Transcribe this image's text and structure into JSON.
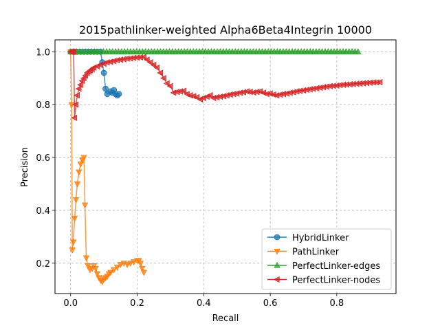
{
  "chart_data": {
    "type": "line",
    "title": "2015pathlinker-weighted Alpha6Beta4Integrin 10000",
    "xlabel": "Recall",
    "ylabel": "Precision",
    "xlim": [
      -0.047,
      0.978
    ],
    "ylim": [
      0.085,
      1.045
    ],
    "xticks": [
      {
        "v": 0.0,
        "label": "0.0"
      },
      {
        "v": 0.2,
        "label": "0.2"
      },
      {
        "v": 0.4,
        "label": "0.4"
      },
      {
        "v": 0.6,
        "label": "0.6"
      },
      {
        "v": 0.8,
        "label": "0.8"
      }
    ],
    "yticks": [
      {
        "v": 0.2,
        "label": "0.2"
      },
      {
        "v": 0.4,
        "label": "0.4"
      },
      {
        "v": 0.6,
        "label": "0.6"
      },
      {
        "v": 0.8,
        "label": "0.8"
      },
      {
        "v": 1.0,
        "label": "1.0"
      }
    ],
    "grid": true,
    "legend_position": "lower-right",
    "series": [
      {
        "name": "HybridLinker",
        "color": "#1f77b4",
        "marker": "circle",
        "points": [
          [
            0.0,
            1.0
          ],
          [
            0.01,
            1.0
          ],
          [
            0.02,
            1.0
          ],
          [
            0.03,
            1.0
          ],
          [
            0.04,
            1.0
          ],
          [
            0.05,
            1.0
          ],
          [
            0.06,
            1.0
          ],
          [
            0.07,
            1.0
          ],
          [
            0.08,
            1.0
          ],
          [
            0.09,
            1.0
          ],
          [
            0.095,
            0.96
          ],
          [
            0.1,
            0.92
          ],
          [
            0.105,
            0.86
          ],
          [
            0.11,
            0.84
          ],
          [
            0.12,
            0.85
          ],
          [
            0.125,
            0.845
          ],
          [
            0.13,
            0.855
          ],
          [
            0.135,
            0.84
          ],
          [
            0.14,
            0.835
          ],
          [
            0.145,
            0.84
          ]
        ]
      },
      {
        "name": "PathLinker",
        "color": "#ff7f0e",
        "marker": "triangle-down",
        "points": [
          [
            0.0,
            1.0
          ],
          [
            0.003,
            0.8
          ],
          [
            0.005,
            0.25
          ],
          [
            0.008,
            0.28
          ],
          [
            0.012,
            0.37
          ],
          [
            0.016,
            0.44
          ],
          [
            0.02,
            0.5
          ],
          [
            0.025,
            0.545
          ],
          [
            0.03,
            0.575
          ],
          [
            0.035,
            0.59
          ],
          [
            0.04,
            0.6
          ],
          [
            0.043,
            0.42
          ],
          [
            0.047,
            0.22
          ],
          [
            0.052,
            0.19
          ],
          [
            0.058,
            0.175
          ],
          [
            0.065,
            0.18
          ],
          [
            0.07,
            0.19
          ],
          [
            0.075,
            0.18
          ],
          [
            0.08,
            0.16
          ],
          [
            0.085,
            0.145
          ],
          [
            0.09,
            0.135
          ],
          [
            0.095,
            0.13
          ],
          [
            0.1,
            0.14
          ],
          [
            0.105,
            0.145
          ],
          [
            0.11,
            0.15
          ],
          [
            0.115,
            0.16
          ],
          [
            0.12,
            0.165
          ],
          [
            0.13,
            0.175
          ],
          [
            0.14,
            0.185
          ],
          [
            0.15,
            0.195
          ],
          [
            0.16,
            0.2
          ],
          [
            0.17,
            0.195
          ],
          [
            0.18,
            0.2
          ],
          [
            0.19,
            0.205
          ],
          [
            0.2,
            0.21
          ],
          [
            0.205,
            0.21
          ],
          [
            0.21,
            0.2
          ],
          [
            0.215,
            0.18
          ],
          [
            0.22,
            0.165
          ]
        ]
      },
      {
        "name": "PerfectLinker-edges",
        "color": "#2ca02c",
        "marker": "triangle-up",
        "x_range": [
          0.0,
          0.87
        ],
        "y_value": 1.0,
        "marker_spacing": 0.009
      },
      {
        "name": "PerfectLinker-nodes",
        "color": "#d62728",
        "marker": "triangle-left",
        "points": [
          [
            0.0,
            1.0
          ],
          [
            0.003,
            1.0
          ],
          [
            0.006,
            1.0
          ],
          [
            0.009,
            1.0
          ],
          [
            0.012,
            0.75
          ],
          [
            0.016,
            0.8
          ],
          [
            0.02,
            0.835
          ],
          [
            0.025,
            0.86
          ],
          [
            0.03,
            0.875
          ],
          [
            0.035,
            0.89
          ],
          [
            0.04,
            0.9
          ],
          [
            0.045,
            0.91
          ],
          [
            0.05,
            0.92
          ],
          [
            0.055,
            0.925
          ],
          [
            0.06,
            0.93
          ],
          [
            0.065,
            0.935
          ],
          [
            0.07,
            0.94
          ],
          [
            0.08,
            0.945
          ],
          [
            0.09,
            0.95
          ],
          [
            0.1,
            0.955
          ],
          [
            0.11,
            0.96
          ],
          [
            0.12,
            0.962
          ],
          [
            0.13,
            0.965
          ],
          [
            0.14,
            0.968
          ],
          [
            0.15,
            0.97
          ],
          [
            0.16,
            0.972
          ],
          [
            0.17,
            0.974
          ],
          [
            0.18,
            0.975
          ],
          [
            0.19,
            0.977
          ],
          [
            0.2,
            0.978
          ],
          [
            0.21,
            0.979
          ],
          [
            0.22,
            0.98
          ],
          [
            0.23,
            0.97
          ],
          [
            0.24,
            0.96
          ],
          [
            0.25,
            0.95
          ],
          [
            0.26,
            0.94
          ],
          [
            0.27,
            0.92
          ],
          [
            0.28,
            0.9
          ],
          [
            0.29,
            0.88
          ],
          [
            0.3,
            0.87
          ],
          [
            0.31,
            0.845
          ],
          [
            0.32,
            0.848
          ],
          [
            0.33,
            0.85
          ],
          [
            0.34,
            0.852
          ],
          [
            0.35,
            0.84
          ],
          [
            0.36,
            0.835
          ],
          [
            0.37,
            0.832
          ],
          [
            0.38,
            0.828
          ],
          [
            0.39,
            0.82
          ],
          [
            0.4,
            0.825
          ],
          [
            0.41,
            0.83
          ],
          [
            0.42,
            0.835
          ],
          [
            0.43,
            0.825
          ],
          [
            0.44,
            0.828
          ],
          [
            0.45,
            0.83
          ],
          [
            0.46,
            0.832
          ],
          [
            0.47,
            0.835
          ],
          [
            0.48,
            0.838
          ],
          [
            0.49,
            0.84
          ],
          [
            0.5,
            0.842
          ],
          [
            0.51,
            0.845
          ],
          [
            0.52,
            0.847
          ],
          [
            0.53,
            0.85
          ],
          [
            0.54,
            0.848
          ],
          [
            0.55,
            0.846
          ],
          [
            0.56,
            0.848
          ],
          [
            0.57,
            0.85
          ],
          [
            0.58,
            0.845
          ],
          [
            0.59,
            0.84
          ],
          [
            0.6,
            0.842
          ],
          [
            0.61,
            0.838
          ],
          [
            0.62,
            0.835
          ],
          [
            0.63,
            0.838
          ],
          [
            0.64,
            0.84
          ],
          [
            0.65,
            0.842
          ],
          [
            0.66,
            0.845
          ],
          [
            0.67,
            0.847
          ],
          [
            0.68,
            0.85
          ],
          [
            0.69,
            0.852
          ],
          [
            0.7,
            0.854
          ],
          [
            0.71,
            0.856
          ],
          [
            0.72,
            0.858
          ],
          [
            0.73,
            0.86
          ],
          [
            0.74,
            0.862
          ],
          [
            0.75,
            0.864
          ],
          [
            0.76,
            0.866
          ],
          [
            0.77,
            0.868
          ],
          [
            0.78,
            0.87
          ],
          [
            0.79,
            0.871
          ],
          [
            0.8,
            0.872
          ],
          [
            0.81,
            0.874
          ],
          [
            0.82,
            0.875
          ],
          [
            0.83,
            0.876
          ],
          [
            0.84,
            0.877
          ],
          [
            0.85,
            0.878
          ],
          [
            0.86,
            0.879
          ],
          [
            0.87,
            0.88
          ],
          [
            0.88,
            0.881
          ],
          [
            0.89,
            0.882
          ],
          [
            0.9,
            0.883
          ],
          [
            0.91,
            0.884
          ],
          [
            0.92,
            0.884
          ],
          [
            0.93,
            0.885
          ]
        ]
      }
    ]
  }
}
